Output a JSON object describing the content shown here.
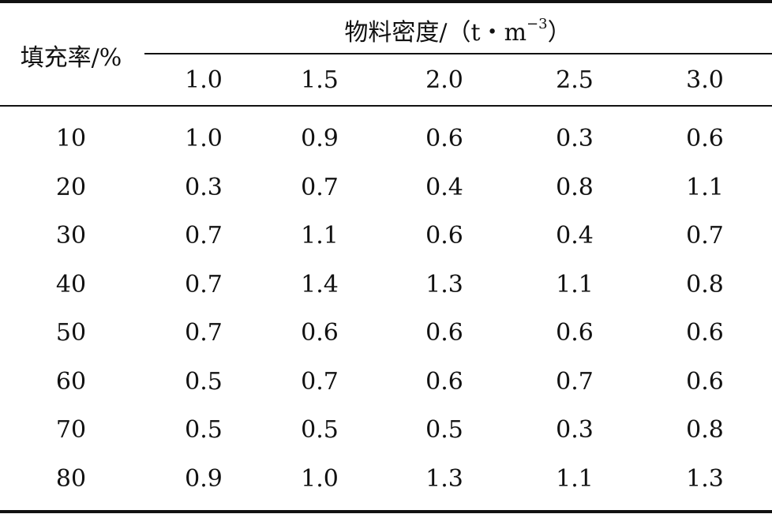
{
  "table": {
    "row_header": "填充率/%",
    "group_header": {
      "label_main": "物料密度/（t・m",
      "label_sup": "−3",
      "label_tail": "）"
    },
    "columns": [
      "1.0",
      "1.5",
      "2.0",
      "2.5",
      "3.0"
    ],
    "rows": [
      {
        "label": "10",
        "values": [
          "1.0",
          "0.9",
          "0.6",
          "0.3",
          "0.6"
        ]
      },
      {
        "label": "20",
        "values": [
          "0.3",
          "0.7",
          "0.4",
          "0.8",
          "1.1"
        ]
      },
      {
        "label": "30",
        "values": [
          "0.7",
          "1.1",
          "0.6",
          "0.4",
          "0.7"
        ]
      },
      {
        "label": "40",
        "values": [
          "0.7",
          "1.4",
          "1.3",
          "1.1",
          "0.8"
        ]
      },
      {
        "label": "50",
        "values": [
          "0.7",
          "0.6",
          "0.6",
          "0.6",
          "0.6"
        ]
      },
      {
        "label": "60",
        "values": [
          "0.5",
          "0.7",
          "0.6",
          "0.7",
          "0.6"
        ]
      },
      {
        "label": "70",
        "values": [
          "0.5",
          "0.5",
          "0.5",
          "0.3",
          "0.8"
        ]
      },
      {
        "label": "80",
        "values": [
          "0.9",
          "1.0",
          "1.3",
          "1.1",
          "1.3"
        ]
      }
    ]
  }
}
